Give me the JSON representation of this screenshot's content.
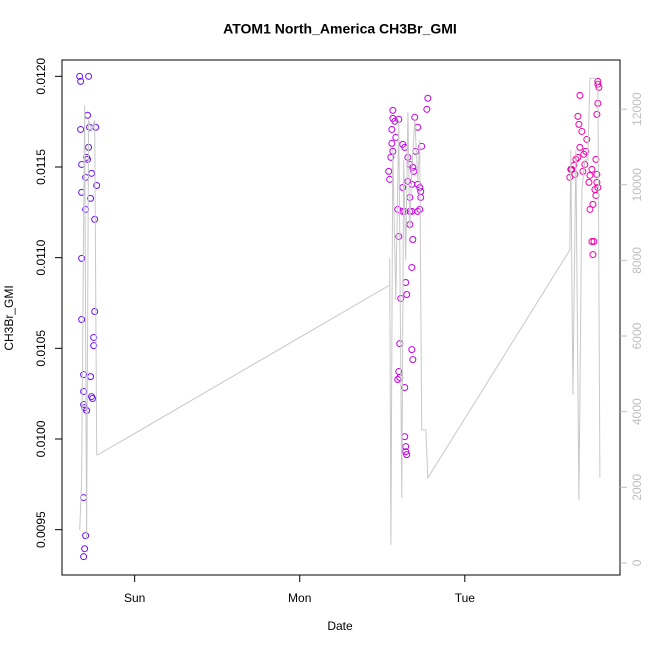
{
  "chart_data": {
    "type": "scatter",
    "title": "ATOM1 North_America CH3Br_GMI",
    "xlabel": "Date",
    "ylabel": "CH3Br_GMI",
    "xlim": [
      -0.44,
      2.94
    ],
    "xticks": [
      {
        "value": 0,
        "label": "Sun"
      },
      {
        "value": 1,
        "label": "Mon"
      },
      {
        "value": 2,
        "label": "Tue"
      }
    ],
    "ylim": [
      0.00925,
      0.01209
    ],
    "yticks": [
      0.0095,
      {
        "value": 0.01,
        "label": "0.0100"
      },
      0.0105,
      {
        "value": 0.011,
        "label": "0.0110"
      },
      0.0115,
      {
        "value": 0.012,
        "label": "0.0120"
      }
    ],
    "y2lim": [
      -320,
      13300
    ],
    "y2ticks": [
      0,
      2000,
      4000,
      6000,
      8000,
      10000,
      12000
    ],
    "series": [
      {
        "type": "scatter",
        "color": "#6a10ff",
        "x": [
          -0.333,
          -0.327,
          -0.279,
          -0.327,
          -0.321,
          -0.321,
          -0.285,
          -0.291,
          -0.279,
          -0.297,
          -0.261,
          -0.285,
          -0.273,
          -0.236,
          -0.23,
          -0.297,
          -0.267,
          -0.242,
          -0.321,
          -0.321,
          -0.242,
          -0.248,
          -0.248,
          -0.267,
          -0.309,
          -0.309,
          -0.261,
          -0.255,
          -0.309,
          -0.303,
          -0.291,
          -0.309,
          -0.297,
          -0.303,
          -0.309
        ],
        "values": [
          0.012,
          0.011972,
          0.012,
          0.011707,
          0.011514,
          0.01136,
          0.011542,
          0.011553,
          0.011608,
          0.011443,
          0.011465,
          0.011785,
          0.011719,
          0.011719,
          0.011398,
          0.011266,
          0.011327,
          0.011211,
          0.010996,
          0.010659,
          0.010703,
          0.01056,
          0.010515,
          0.010344,
          0.010355,
          0.010262,
          0.010234,
          0.010223,
          0.01019,
          0.010173,
          0.010157,
          0.009677,
          0.009467,
          0.009395,
          0.009351
        ]
      },
      {
        "type": "scatter",
        "color": "#c400e8",
        "x": [
          1.564,
          1.564,
          1.576,
          1.558,
          1.558,
          1.564,
          1.552,
          1.539,
          1.545,
          1.6,
          1.582,
          1.624,
          1.636,
          1.655,
          1.667,
          1.685,
          1.697,
          1.715,
          1.703,
          1.691,
          1.655,
          1.679,
          1.624,
          1.667,
          1.594,
          1.636,
          1.679,
          1.715,
          1.727,
          1.733,
          1.727,
          1.715,
          1.733,
          1.667,
          1.685,
          1.6,
          1.679,
          1.642,
          1.648,
          1.612,
          1.606,
          1.6,
          1.606,
          1.594,
          1.636,
          1.636,
          1.642,
          1.642,
          1.648,
          1.679,
          1.685,
          1.776,
          1.77,
          1.739,
          1.624,
          1.667
        ],
        "values": [
          0.011812,
          0.011768,
          0.011752,
          0.011707,
          0.01163,
          0.011586,
          0.011553,
          0.011476,
          0.011432,
          0.011763,
          0.011663,
          0.011625,
          0.011608,
          0.011553,
          0.011514,
          0.011498,
          0.011774,
          0.011719,
          0.011586,
          0.011476,
          0.011421,
          0.011404,
          0.011387,
          0.011332,
          0.011266,
          0.011255,
          0.011255,
          0.011255,
          0.011266,
          0.011332,
          0.011387,
          0.011404,
          0.011365,
          0.011183,
          0.0111,
          0.011117,
          0.010946,
          0.010863,
          0.010797,
          0.010775,
          0.010526,
          0.010372,
          0.010339,
          0.010328,
          0.010284,
          0.010013,
          0.009958,
          0.00993,
          0.009914,
          0.010493,
          0.010438,
          0.011879,
          0.011818,
          0.011614,
          0.011255,
          0.011255
        ]
      },
      {
        "type": "scatter",
        "color": "#ec00a8",
        "x": [
          2.636,
          2.648,
          2.661,
          2.673,
          2.685,
          2.697,
          2.685,
          2.697,
          2.721,
          2.733,
          2.727,
          2.715,
          2.752,
          2.758,
          2.776,
          2.788,
          2.8,
          2.794,
          2.8,
          2.806,
          2.812,
          2.806,
          2.806,
          2.8,
          2.806,
          2.794,
          2.782,
          2.77,
          2.776,
          2.709,
          2.691,
          2.739,
          2.642,
          2.667,
          2.77,
          2.758
        ],
        "values": [
          0.011443,
          0.011487,
          0.011509,
          0.011542,
          0.011553,
          0.011895,
          0.011779,
          0.011608,
          0.01157,
          0.011586,
          0.011514,
          0.011476,
          0.011415,
          0.011266,
          0.011294,
          0.011376,
          0.011459,
          0.011542,
          0.01179,
          0.011851,
          0.011939,
          0.011972,
          0.011956,
          0.011415,
          0.011387,
          0.011343,
          0.011089,
          0.011089,
          0.011017,
          0.011696,
          0.011735,
          0.011652,
          0.011487,
          0.011459,
          0.011487,
          0.011454
        ]
      },
      {
        "type": "line",
        "axis": "y2",
        "color": "#c8c8c8",
        "x": [
          -0.333,
          -0.321,
          -0.303,
          -0.291,
          -0.279,
          -0.261,
          -0.242,
          -0.23,
          -0.224,
          1.545,
          1.545,
          1.552,
          1.564,
          1.582,
          1.6,
          1.618,
          1.63,
          1.642,
          1.655,
          1.667,
          1.679,
          1.697,
          1.715,
          1.727,
          1.739,
          1.764,
          1.776,
          2.636,
          2.642,
          2.655,
          2.673,
          2.691,
          2.709,
          2.727,
          2.745,
          2.758,
          2.788,
          2.806,
          2.818
        ],
        "values": [
          872,
          2194,
          12105,
          608,
          11709,
          11444,
          11709,
          2855,
          2855,
          7348,
          8061,
          476,
          10916,
          6952,
          11709,
          1718,
          10652,
          8008,
          11920,
          8801,
          10387,
          11709,
          10123,
          11180,
          3515,
          3515,
          2247,
          8273,
          10916,
          4440,
          10916,
          1665,
          9859,
          10652,
          10652,
          12818,
          12818,
          12766,
          2247
        ]
      }
    ]
  }
}
